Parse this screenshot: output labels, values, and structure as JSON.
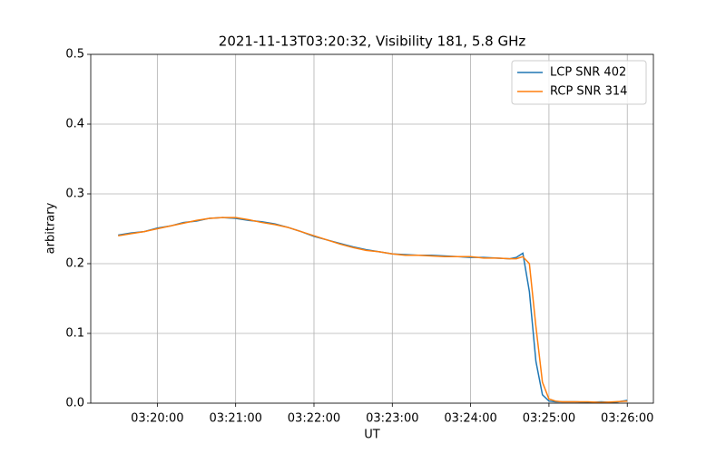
{
  "chart_data": {
    "type": "line",
    "title": "2021-11-13T03:20:32, Visibility 181, 5.8 GHz",
    "x_label": "UT",
    "y_label": "arbitrary",
    "x": [
      "03:19:30",
      "03:19:40",
      "03:19:50",
      "03:20:00",
      "03:20:10",
      "03:20:20",
      "03:20:30",
      "03:20:40",
      "03:20:50",
      "03:21:00",
      "03:21:10",
      "03:21:20",
      "03:21:30",
      "03:21:40",
      "03:21:50",
      "03:22:00",
      "03:22:10",
      "03:22:20",
      "03:22:30",
      "03:22:40",
      "03:22:50",
      "03:23:00",
      "03:23:10",
      "03:23:20",
      "03:23:30",
      "03:23:40",
      "03:23:50",
      "03:24:00",
      "03:24:10",
      "03:24:20",
      "03:24:30",
      "03:24:35",
      "03:24:40",
      "03:24:45",
      "03:24:50",
      "03:24:55",
      "03:25:00",
      "03:25:05",
      "03:25:10",
      "03:25:20",
      "03:25:30",
      "03:25:40",
      "03:25:50",
      "03:26:00"
    ],
    "series": [
      {
        "name": "LCP SNR 402",
        "color": "#1f77b4",
        "values": [
          0.241,
          0.244,
          0.246,
          0.251,
          0.254,
          0.259,
          0.261,
          0.265,
          0.266,
          0.265,
          0.262,
          0.26,
          0.257,
          0.252,
          0.246,
          0.239,
          0.234,
          0.229,
          0.224,
          0.22,
          0.217,
          0.214,
          0.213,
          0.212,
          0.212,
          0.211,
          0.21,
          0.209,
          0.209,
          0.208,
          0.207,
          0.209,
          0.215,
          0.16,
          0.06,
          0.012,
          0.003,
          0.002,
          0.002,
          0.002,
          0.001,
          0.002,
          0.001,
          0.004
        ]
      },
      {
        "name": "RCP SNR 314",
        "color": "#ff7f0e",
        "values": [
          0.24,
          0.243,
          0.246,
          0.25,
          0.254,
          0.258,
          0.262,
          0.265,
          0.266,
          0.266,
          0.263,
          0.259,
          0.256,
          0.252,
          0.246,
          0.24,
          0.234,
          0.228,
          0.223,
          0.219,
          0.217,
          0.214,
          0.212,
          0.212,
          0.211,
          0.21,
          0.21,
          0.21,
          0.208,
          0.208,
          0.207,
          0.207,
          0.21,
          0.2,
          0.11,
          0.03,
          0.006,
          0.003,
          0.002,
          0.002,
          0.002,
          0.001,
          0.002,
          0.003
        ]
      }
    ],
    "xlim": [
      "03:19:09",
      "03:26:20"
    ],
    "xticks": [
      "03:20:00",
      "03:21:00",
      "03:22:00",
      "03:23:00",
      "03:24:00",
      "03:25:00",
      "03:26:00"
    ],
    "ylim": [
      0,
      0.5
    ],
    "yticks": [
      {
        "value": 0,
        "label": "0.0"
      },
      0.1,
      0.2,
      0.3,
      0.4,
      0.5
    ],
    "grid": true,
    "legend": "upper right"
  }
}
